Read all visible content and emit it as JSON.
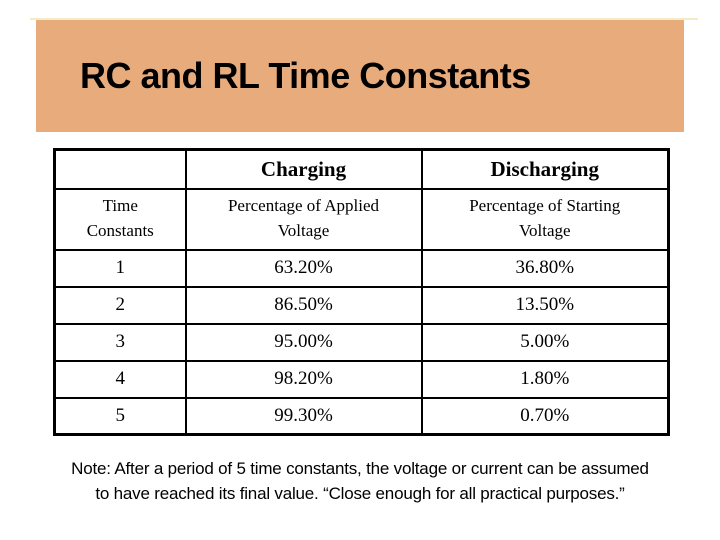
{
  "slide": {
    "title": "RC and RL Time Constants"
  },
  "colors": {
    "header_bg": "#e8ac7c",
    "table_border": "#000000",
    "accent_line": "#f2ecc6",
    "text": "#000000"
  },
  "table": {
    "header": {
      "charging": "Charging",
      "discharging": "Discharging",
      "row_label": "Time\nConstants",
      "charging_sub": "Percentage of Applied\nVoltage",
      "discharging_sub": "Percentage of Starting\nVoltage"
    },
    "rows": [
      {
        "n": "1",
        "charging": "63.20%",
        "discharging": "36.80%"
      },
      {
        "n": "2",
        "charging": "86.50%",
        "discharging": "13.50%"
      },
      {
        "n": "3",
        "charging": "95.00%",
        "discharging": "5.00%"
      },
      {
        "n": "4",
        "charging": "98.20%",
        "discharging": "1.80%"
      },
      {
        "n": "5",
        "charging": "99.30%",
        "discharging": "0.70%"
      }
    ]
  },
  "note": {
    "text": "Note: After a period of 5 time constants, the voltage or current can be assumed\nto have reached its final value. “Close enough for all practical purposes.”"
  }
}
